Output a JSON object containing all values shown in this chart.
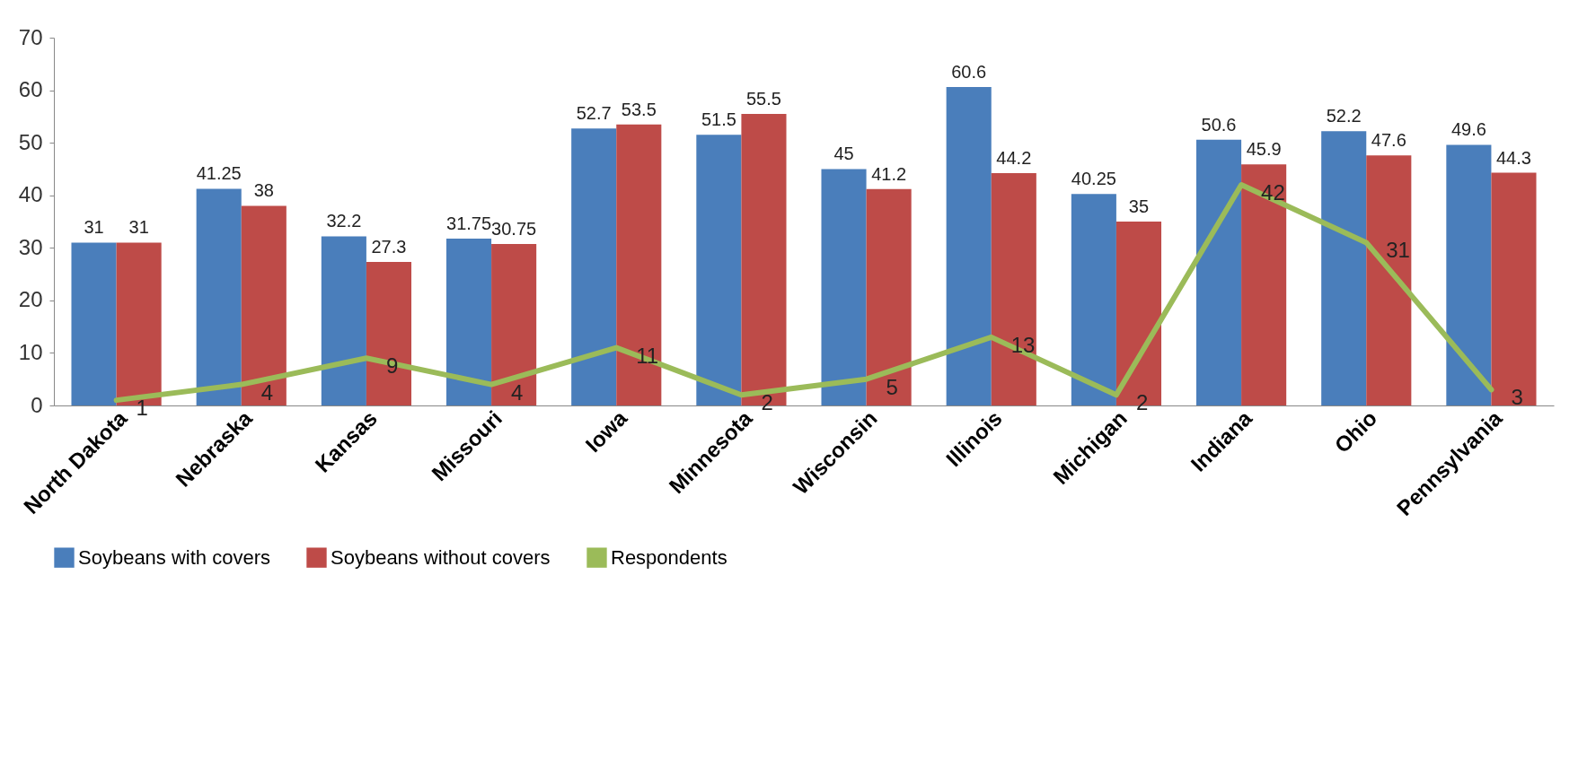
{
  "chart_data": {
    "type": "bar",
    "categories": [
      "North Dakota",
      "Nebraska",
      "Kansas",
      "Missouri",
      "Iowa",
      "Minnesota",
      "Wisconsin",
      "Illinois",
      "Michigan",
      "Indiana",
      "Ohio",
      "Pennsylvania"
    ],
    "series": [
      {
        "name": "Soybeans with covers",
        "color": "#4a7ebb",
        "values": [
          31,
          41.25,
          32.2,
          31.75,
          52.7,
          51.5,
          45,
          60.6,
          40.25,
          50.6,
          52.2,
          49.6
        ]
      },
      {
        "name": "Soybeans without covers",
        "color": "#be4b48",
        "values": [
          31,
          38,
          27.3,
          30.75,
          53.5,
          55.5,
          41.2,
          44.2,
          35,
          45.9,
          47.6,
          44.3
        ]
      },
      {
        "name": "Respondents",
        "type": "line",
        "color": "#9bbb59",
        "values": [
          1,
          4,
          9,
          4,
          11,
          2,
          5,
          13,
          2,
          42,
          31,
          3
        ]
      }
    ],
    "ylim": [
      0,
      70
    ],
    "yticks": [
      0,
      10,
      20,
      30,
      40,
      50,
      60,
      70
    ],
    "grid": false,
    "legend": "bottom",
    "data_labels": true,
    "line_style": "solid",
    "marker": "none"
  }
}
